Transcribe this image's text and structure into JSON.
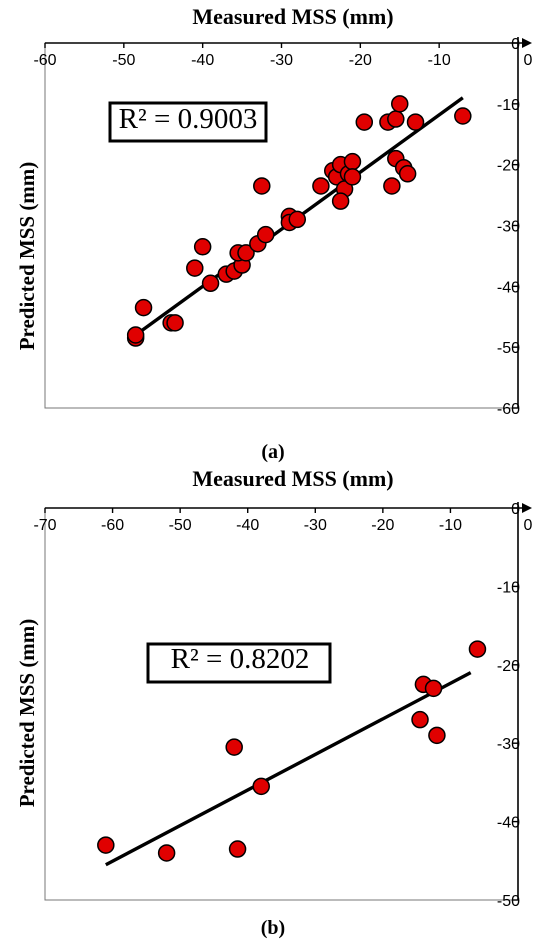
{
  "figure": {
    "caption_a": "(a)",
    "caption_b": "(b)"
  },
  "chart_data": [
    {
      "type": "scatter",
      "title": "Measured MSS (mm)",
      "xlabel": "Measured MSS (mm)",
      "ylabel": "Predicted  MSS (mm)",
      "xlim": [
        -60,
        0
      ],
      "ylim": [
        -60,
        0
      ],
      "x_ticks": [
        -60,
        -50,
        -40,
        -30,
        -20,
        -10,
        0
      ],
      "y_ticks": [
        -60,
        -50,
        -40,
        -30,
        -20,
        -10,
        0
      ],
      "x_tick_labels": [
        "-60",
        "-50",
        "-40",
        "-30",
        "-20",
        "-10",
        "0"
      ],
      "y_tick_labels": [
        "-60",
        "-50",
        "-40",
        "-30",
        "-20",
        "-10",
        "0"
      ],
      "annotation": "R² = 0.9003",
      "point_color": "#e00000",
      "trendline": [
        [
          -48.5,
          -48
        ],
        [
          -7,
          -9
        ]
      ],
      "points": [
        [
          -48.5,
          -48.5
        ],
        [
          -48.5,
          -48.0
        ],
        [
          -47.5,
          -43.5
        ],
        [
          -44.0,
          -46.0
        ],
        [
          -43.5,
          -46.0
        ],
        [
          -41.0,
          -37.0
        ],
        [
          -40.0,
          -33.5
        ],
        [
          -39.0,
          -39.5
        ],
        [
          -37.0,
          -38.0
        ],
        [
          -36.0,
          -37.5
        ],
        [
          -35.0,
          -36.5
        ],
        [
          -35.5,
          -34.5
        ],
        [
          -34.5,
          -34.5
        ],
        [
          -33.0,
          -33.0
        ],
        [
          -32.0,
          -31.5
        ],
        [
          -32.5,
          -23.5
        ],
        [
          -29.0,
          -28.5
        ],
        [
          -29.0,
          -29.5
        ],
        [
          -28.0,
          -29.0
        ],
        [
          -25.0,
          -23.5
        ],
        [
          -23.5,
          -21.0
        ],
        [
          -23.0,
          -22.0
        ],
        [
          -22.5,
          -20.0
        ],
        [
          -21.5,
          -21.5
        ],
        [
          -22.0,
          -24.0
        ],
        [
          -22.5,
          -26.0
        ],
        [
          -21.0,
          -19.5
        ],
        [
          -21.0,
          -22.0
        ],
        [
          -19.5,
          -13.0
        ],
        [
          -16.5,
          -13.0
        ],
        [
          -15.5,
          -12.5
        ],
        [
          -15.5,
          -19.0
        ],
        [
          -15.0,
          -10.0
        ],
        [
          -16.0,
          -23.5
        ],
        [
          -14.5,
          -20.5
        ],
        [
          -14.0,
          -21.5
        ],
        [
          -13.0,
          -13.0
        ],
        [
          -7.0,
          -12.0
        ]
      ]
    },
    {
      "type": "scatter",
      "title": "Measured MSS (mm)",
      "xlabel": "Measured MSS (mm)",
      "ylabel": "Predicted  MSS (mm)",
      "xlim": [
        -70,
        0
      ],
      "ylim": [
        -50,
        0
      ],
      "x_ticks": [
        -70,
        -60,
        -50,
        -40,
        -30,
        -20,
        -10,
        0
      ],
      "y_ticks": [
        -50,
        -40,
        -30,
        -20,
        -10,
        0
      ],
      "x_tick_labels": [
        "-70",
        "-60",
        "-50",
        "-40",
        "-30",
        "-20",
        "-10",
        "0"
      ],
      "y_tick_labels": [
        "-50",
        "-40",
        "-30",
        "-20",
        "-10",
        "0"
      ],
      "annotation": "R² = 0.8202",
      "point_color": "#e00000",
      "trendline": [
        [
          -61,
          -45.5
        ],
        [
          -7,
          -21
        ]
      ],
      "points": [
        [
          -61.0,
          -43.0
        ],
        [
          -52.0,
          -44.0
        ],
        [
          -42.0,
          -30.5
        ],
        [
          -41.5,
          -43.5
        ],
        [
          -38.0,
          -35.5
        ],
        [
          -14.5,
          -27.0
        ],
        [
          -14.0,
          -22.5
        ],
        [
          -12.5,
          -23.0
        ],
        [
          -12.0,
          -29.0
        ],
        [
          -6.0,
          -18.0
        ]
      ]
    }
  ]
}
